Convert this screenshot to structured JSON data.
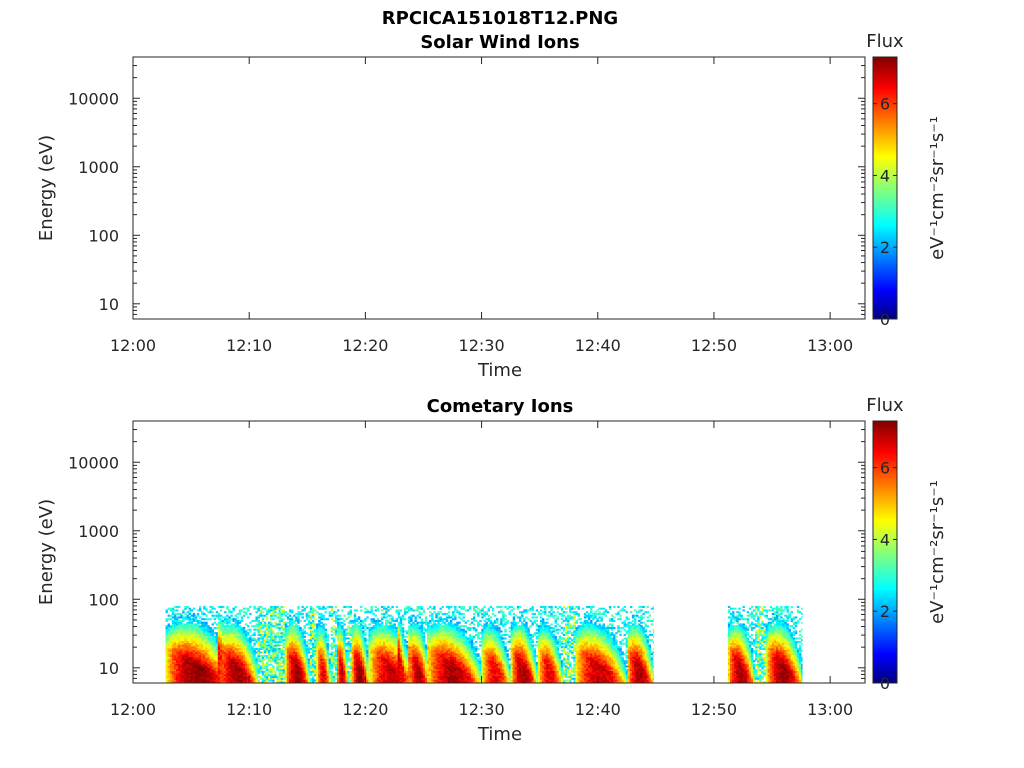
{
  "figure": {
    "title": "RPCICA151018T12.PNG"
  },
  "colorbar": {
    "label": "Flux",
    "unit": "eV⁻¹cm⁻²sr⁻¹s⁻¹",
    "ticks": [
      "0",
      "2",
      "4",
      "6"
    ]
  },
  "chart_data": [
    {
      "type": "heatmap",
      "title": "Solar Wind Ions",
      "xlabel": "Time",
      "ylabel": "Energy (eV)",
      "x_ticks": [
        "12:00",
        "12:10",
        "12:20",
        "12:30",
        "12:40",
        "12:50",
        "13:00"
      ],
      "y_ticks": [
        "10",
        "100",
        "1000",
        "10000"
      ],
      "y_scale": "log",
      "ylim": [
        6,
        40000
      ],
      "xlim_minutes": [
        0,
        63
      ],
      "clim": [
        0,
        7.3
      ],
      "bursts": []
    },
    {
      "type": "heatmap",
      "title": "Cometary Ions",
      "xlabel": "Time",
      "ylabel": "Energy (eV)",
      "x_ticks": [
        "12:00",
        "12:10",
        "12:20",
        "12:30",
        "12:40",
        "12:50",
        "13:00"
      ],
      "y_ticks": [
        "10",
        "100",
        "1000",
        "10000"
      ],
      "y_scale": "log",
      "ylim": [
        6,
        40000
      ],
      "xlim_minutes": [
        0,
        63
      ],
      "clim": [
        0,
        7.3
      ],
      "data_extent_eV": [
        6,
        80
      ],
      "intervals_minutes": [
        [
          2.8,
          44.8
        ],
        [
          51.2,
          57.6
        ]
      ],
      "bursts": [
        {
          "start": 2.8,
          "end": 8.5,
          "peak": 7.2
        },
        {
          "start": 7.3,
          "end": 10.8,
          "peak": 7.0
        },
        {
          "start": 13.1,
          "end": 15.2,
          "peak": 7.1
        },
        {
          "start": 15.8,
          "end": 17.0,
          "peak": 6.5
        },
        {
          "start": 17.5,
          "end": 18.5,
          "peak": 6.8
        },
        {
          "start": 18.8,
          "end": 20.3,
          "peak": 7.1
        },
        {
          "start": 20.3,
          "end": 24.3,
          "peak": 6.8
        },
        {
          "start": 22.8,
          "end": 23.5,
          "peak": 6.5
        },
        {
          "start": 23.7,
          "end": 25.5,
          "peak": 6.9
        },
        {
          "start": 25.3,
          "end": 30.0,
          "peak": 7.0
        },
        {
          "start": 30.0,
          "end": 32.5,
          "peak": 6.5
        },
        {
          "start": 32.5,
          "end": 34.8,
          "peak": 7.0
        },
        {
          "start": 34.8,
          "end": 37.0,
          "peak": 6.5
        },
        {
          "start": 38.0,
          "end": 42.5,
          "peak": 6.8
        },
        {
          "start": 42.5,
          "end": 44.8,
          "peak": 7.0
        },
        {
          "start": 51.2,
          "end": 53.5,
          "peak": 7.0
        },
        {
          "start": 54.5,
          "end": 57.6,
          "peak": 7.1
        }
      ]
    }
  ]
}
